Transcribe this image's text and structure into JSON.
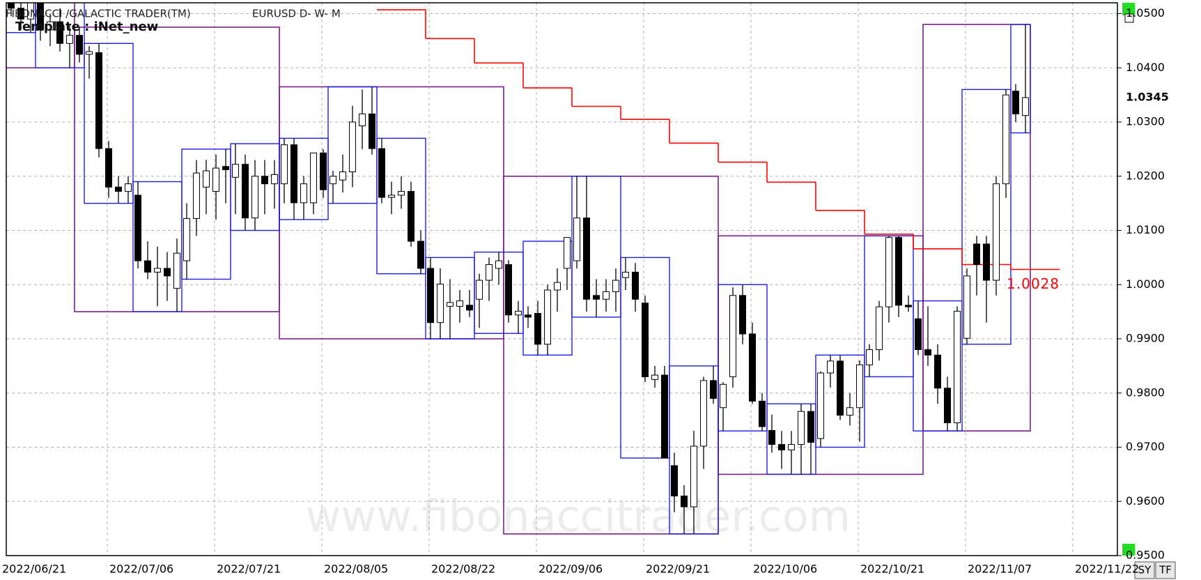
{
  "chart_data": {
    "type": "candlestick",
    "title": "FIBONACCI /GALACTIC TRADER(TM)",
    "symbol": "EURUSD D- W- M",
    "template": "Template : iNet_new",
    "watermark": "www.fibonaccitrader.com",
    "buttons": [
      "SY",
      "TF"
    ],
    "categories": [
      "2022/06/21",
      null,
      null,
      null,
      null,
      null,
      null,
      null,
      null,
      null,
      null,
      "2022/07/06",
      null,
      null,
      null,
      null,
      null,
      null,
      null,
      null,
      null,
      null,
      "2022/07/21",
      null,
      null,
      null,
      null,
      null,
      null,
      null,
      null,
      null,
      null,
      "2022/08/05",
      null,
      null,
      null,
      null,
      null,
      null,
      null,
      null,
      null,
      null,
      "2022/08/22",
      null,
      null,
      null,
      null,
      null,
      null,
      null,
      null,
      null,
      null,
      "2022/09/06",
      null,
      null,
      null,
      null,
      null,
      null,
      null,
      null,
      null,
      null,
      "2022/09/21",
      null,
      null,
      null,
      null,
      null,
      null,
      null,
      null,
      null,
      null,
      "2022/10/06",
      null,
      null,
      null,
      null,
      null,
      null,
      null,
      null,
      null,
      null,
      "2022/10/21",
      null,
      null,
      null,
      null,
      null,
      null,
      null,
      null,
      null,
      null,
      "2022/11/07",
      null,
      null,
      null,
      null,
      null,
      null,
      null,
      null,
      null,
      null,
      "2022/11/22"
    ],
    "candles": [
      [
        1.0514,
        1.0545,
        1.049,
        1.0528
      ],
      [
        1.0528,
        1.056,
        1.0495,
        1.051
      ],
      [
        1.051,
        1.054,
        1.047,
        1.049
      ],
      [
        1.049,
        1.053,
        1.0465,
        1.052
      ],
      [
        1.052,
        1.0535,
        1.045,
        1.047
      ],
      [
        1.047,
        1.05,
        1.044,
        1.0485
      ],
      [
        1.0485,
        1.051,
        1.043,
        1.0445
      ],
      [
        1.0445,
        1.048,
        1.04,
        1.046
      ],
      [
        1.046,
        1.0475,
        1.041,
        1.0425
      ],
      [
        1.0425,
        1.044,
        1.038,
        1.043
      ],
      [
        1.0428,
        1.0445,
        1.0235,
        1.0251
      ],
      [
        1.0251,
        1.0265,
        1.016,
        1.018
      ],
      [
        1.018,
        1.02,
        1.015,
        1.0172
      ],
      [
        1.0172,
        1.02,
        1.015,
        1.0186
      ],
      [
        1.0165,
        1.019,
        1.003,
        1.0044
      ],
      [
        1.0044,
        1.008,
        1.001,
        1.0023
      ],
      [
        1.0023,
        1.007,
        0.996,
        1.003
      ],
      [
        1.003,
        1.006,
        0.997,
        1.0016
      ],
      [
        0.9993,
        1.0085,
        0.995,
        1.0058
      ],
      [
        1.0044,
        1.015,
        1.001,
        1.0122
      ],
      [
        1.0122,
        1.023,
        1.009,
        1.0206
      ],
      [
        1.018,
        1.023,
        1.013,
        1.021
      ],
      [
        1.0172,
        1.024,
        1.012,
        1.0215
      ],
      [
        1.0218,
        1.025,
        1.015,
        1.0212
      ],
      [
        1.0198,
        1.026,
        1.013,
        1.0222
      ],
      [
        1.0222,
        1.024,
        1.01,
        1.0123
      ],
      [
        1.0123,
        1.023,
        1.01,
        1.02
      ],
      [
        1.02,
        1.023,
        1.013,
        1.0186
      ],
      [
        1.0186,
        1.023,
        1.014,
        1.0203
      ],
      [
        1.0186,
        1.027,
        1.015,
        1.0258
      ],
      [
        1.0258,
        1.027,
        1.012,
        1.0151
      ],
      [
        1.0151,
        1.02,
        1.012,
        1.0186
      ],
      [
        1.0151,
        1.024,
        1.013,
        1.0243
      ],
      [
        1.0243,
        1.025,
        1.016,
        1.0175
      ],
      [
        1.0186,
        1.021,
        1.015,
        1.02
      ],
      [
        1.0193,
        1.024,
        1.017,
        1.0208
      ],
      [
        1.0208,
        1.033,
        1.018,
        1.03
      ],
      [
        1.0293,
        1.036,
        1.025,
        1.0315
      ],
      [
        1.0315,
        1.0365,
        1.024,
        1.0251
      ],
      [
        1.0251,
        1.027,
        1.015,
        1.0161
      ],
      [
        1.0161,
        1.019,
        1.013,
        1.0165
      ],
      [
        1.0165,
        1.02,
        1.014,
        1.0172
      ],
      [
        1.0172,
        1.019,
        1.007,
        1.008
      ],
      [
        1.008,
        1.01,
        1.002,
        1.003
      ],
      [
        1.003,
        1.005,
        0.99,
        0.993
      ],
      [
        0.993,
        1.003,
        0.99,
        1.0001
      ],
      [
        0.996,
        1.001,
        0.99,
        0.9967
      ],
      [
        0.996,
        0.999,
        0.993,
        0.997
      ],
      [
        0.9962,
        0.999,
        0.994,
        0.9953
      ],
      [
        0.9973,
        1.002,
        0.992,
        1.0008
      ],
      [
        1.0008,
        1.005,
        0.997,
        1.0037
      ],
      [
        1.003,
        1.006,
        1.0,
        1.0044
      ],
      [
        1.0037,
        1.0045,
        0.993,
        0.9944
      ],
      [
        0.9944,
        0.997,
        0.991,
        0.9951
      ],
      [
        0.9944,
        0.996,
        0.992,
        0.994
      ],
      [
        0.9947,
        0.997,
        0.987,
        0.989
      ],
      [
        0.989,
        1.0,
        0.987,
        0.999
      ],
      [
        0.999,
        1.003,
        0.995,
        1.0004
      ],
      [
        1.003,
        1.008,
        0.999,
        1.0087
      ],
      [
        1.0044,
        1.02,
        1.003,
        1.0123
      ],
      [
        1.0123,
        1.02,
        0.995,
        0.9973
      ],
      [
        0.998,
        1.001,
        0.994,
        0.9973
      ],
      [
        0.9973,
        1.001,
        0.995,
        0.9987
      ],
      [
        0.9987,
        1.003,
        0.995,
        1.0008
      ],
      [
        1.0013,
        1.005,
        0.999,
        1.0023
      ],
      [
        1.0023,
        1.004,
        0.995,
        0.9973
      ],
      [
        0.9966,
        0.998,
        0.982,
        0.983
      ],
      [
        0.9825,
        0.985,
        0.981,
        0.9833
      ],
      [
        0.9833,
        0.985,
        0.968,
        0.968
      ],
      [
        0.9666,
        0.969,
        0.958,
        0.961
      ],
      [
        0.961,
        0.963,
        0.954,
        0.959
      ],
      [
        0.959,
        0.973,
        0.954,
        0.9702
      ],
      [
        0.9702,
        0.983,
        0.966,
        0.9823
      ],
      [
        0.9823,
        0.985,
        0.978,
        0.979
      ],
      [
        0.9773,
        0.982,
        0.973,
        0.9816
      ],
      [
        0.983,
        0.9995,
        0.981,
        0.998
      ],
      [
        0.998,
        1.0,
        0.989,
        0.9909
      ],
      [
        0.9909,
        0.993,
        0.978,
        0.9785
      ],
      [
        0.9785,
        0.98,
        0.973,
        0.9738
      ],
      [
        0.9731,
        0.976,
        0.969,
        0.9705
      ],
      [
        0.9705,
        0.973,
        0.966,
        0.9695
      ],
      [
        0.9695,
        0.973,
        0.965,
        0.9705
      ],
      [
        0.9705,
        0.978,
        0.965,
        0.9766
      ],
      [
        0.9766,
        0.978,
        0.965,
        0.9709
      ],
      [
        0.9716,
        0.984,
        0.97,
        0.9837
      ],
      [
        0.9837,
        0.987,
        0.981,
        0.9859
      ],
      [
        0.9859,
        0.987,
        0.975,
        0.9759
      ],
      [
        0.9759,
        0.98,
        0.974,
        0.9773
      ],
      [
        0.9773,
        0.986,
        0.971,
        0.9852
      ],
      [
        0.9852,
        0.989,
        0.983,
        0.988
      ],
      [
        0.988,
        0.997,
        0.986,
        0.9959
      ],
      [
        0.9959,
        1.009,
        0.993,
        1.0087
      ],
      [
        1.0087,
        1.009,
        0.994,
        0.9962
      ],
      [
        0.9962,
        0.998,
        0.995,
        0.9959
      ],
      [
        0.9937,
        0.997,
        0.987,
        0.988
      ],
      [
        0.988,
        0.996,
        0.985,
        0.987
      ],
      [
        0.987,
        0.989,
        0.978,
        0.9809
      ],
      [
        0.9809,
        0.983,
        0.973,
        0.9745
      ],
      [
        0.9745,
        0.996,
        0.973,
        0.9951
      ],
      [
        0.9901,
        1.003,
        0.989,
        1.0016
      ],
      [
        1.0075,
        1.009,
        0.998,
        1.0037
      ],
      [
        1.0075,
        1.009,
        0.993,
        1.0008
      ],
      [
        1.0008,
        1.02,
        0.998,
        1.0186
      ],
      [
        1.0186,
        1.036,
        1.016,
        1.035
      ],
      [
        1.0357,
        1.037,
        1.03,
        1.0315
      ],
      [
        1.0312,
        1.048,
        1.028,
        1.0345
      ],
      null,
      null,
      null,
      null,
      null
    ],
    "up_color": "#ffffff",
    "down_color": "#000000",
    "week_box_color": "#1f1fe0",
    "month_box_color": "#7a1f8a",
    "stop": {
      "color": "#ff0000",
      "values": [
        null,
        null,
        null,
        null,
        null,
        null,
        null,
        null,
        1.0507,
        1.0454,
        1.0409,
        1.0363,
        1.0329,
        1.0305,
        1.0261,
        1.0226,
        1.0189,
        1.0137,
        1.0093,
        1.0066,
        1.0037,
        1.0028
      ]
    },
    "ylim": [
      0.95,
      1.052
    ],
    "yticks": [
      {
        "value": 0.95,
        "label": "0.9500"
      },
      {
        "value": 0.96,
        "label": "0.9600"
      },
      {
        "value": 0.97,
        "label": "0.9700"
      },
      {
        "value": 0.98,
        "label": "0.9800"
      },
      {
        "value": 0.99,
        "label": "0.9900"
      },
      {
        "value": 1.0,
        "label": "1.0000"
      },
      {
        "value": 1.01,
        "label": "1.0100"
      },
      {
        "value": 1.02,
        "label": "1.0200"
      },
      {
        "value": 1.03,
        "label": "1.0300"
      },
      {
        "value": 1.04,
        "label": "1.0400"
      },
      {
        "value": 1.05,
        "label": "1.0500"
      }
    ],
    "grid": true
  }
}
